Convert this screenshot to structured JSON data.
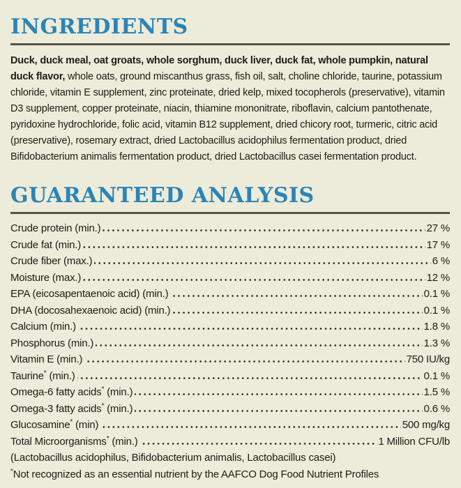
{
  "theme": {
    "background": "#edebd9",
    "accent_blue": "#2a85b7",
    "rule_color": "#55544c",
    "text_color": "#1d1c18"
  },
  "ingredients": {
    "title": "INGREDIENTS",
    "bold_text": "Duck, duck meal, oat groats, whole sorghum, duck liver, duck fat, whole pumpkin, natural duck flavor,",
    "regular_text": " whole oats, ground miscanthus grass, fish oil, salt, choline chloride, taurine, potassium chloride, vitamin E supplement, zinc proteinate, dried kelp, mixed tocopherols (preservative), vitamin D3 supplement, copper proteinate, niacin, thiamine mononitrate, riboflavin, calcium pantothenate, pyridoxine hydrochloride, folic acid, vitamin B12 supplement, dried chicory root, turmeric, citric acid (preservative), rosemary extract, dried Lactobacillus acidophilus fermentation product, dried Bifidobacterium animalis fermentation product, dried Lactobacillus casei fermentation product."
  },
  "guaranteed_analysis": {
    "title": "GUARANTEED ANALYSIS",
    "rows": [
      {
        "name": "Crude protein",
        "mark": "",
        "suffix": " (min.)",
        "value": "27 %"
      },
      {
        "name": "Crude fat",
        "mark": "",
        "suffix": " (min.)",
        "value": "17 %"
      },
      {
        "name": "Crude fiber",
        "mark": "",
        "suffix": " (max.)",
        "value": "6 %"
      },
      {
        "name": "Moisture",
        "mark": "",
        "suffix": " (max.)",
        "value": "12 %"
      },
      {
        "name": "EPA (eicosapentaenoic acid)",
        "mark": "",
        "suffix": " (min.)",
        "value": "0.1 %"
      },
      {
        "name": "DHA (docosahexaenoic acid)",
        "mark": "",
        "suffix": " (min.)",
        "value": "0.1 %"
      },
      {
        "name": "Calcium",
        "mark": "",
        "suffix": " (min.)",
        "value": "1.8 %"
      },
      {
        "name": "Phosphorus",
        "mark": "",
        "suffix": " (min.)",
        "value": "1.3 %"
      },
      {
        "name": "Vitamin E",
        "mark": "",
        "suffix": " (min.)",
        "value": "750 IU/kg"
      },
      {
        "name": "Taurine",
        "mark": "*",
        "suffix": " (min.)",
        "value": "0.1 %"
      },
      {
        "name": "Omega-6 fatty acids",
        "mark": "*",
        "suffix": " (min.)",
        "value": "1.5 %"
      },
      {
        "name": "Omega-3 fatty acids",
        "mark": "*",
        "suffix": " (min.)",
        "value": "0.6 %"
      },
      {
        "name": "Glucosamine",
        "mark": "*",
        "suffix": " (min)",
        "value": "500 mg/kg"
      },
      {
        "name": "Total Microorganisms",
        "mark": "*",
        "suffix": " (min.)",
        "value": "1 Million CFU/lb"
      }
    ],
    "probiotics_note": "(Lactobacillus acidophilus, Bifidobacterium animalis, Lactobacillus casei)",
    "footnote_mark": "*",
    "footnote_text": "Not recognized as an essential nutrient by the AAFCO Dog Food Nutrient Profiles"
  }
}
